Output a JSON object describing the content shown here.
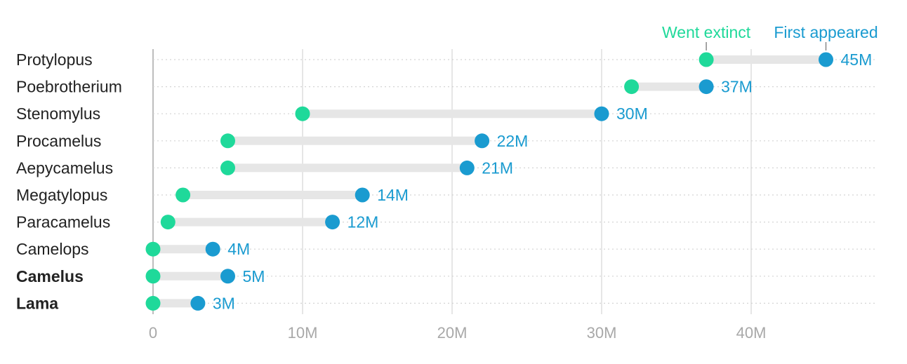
{
  "chart_data": {
    "type": "dumbbell",
    "title": "",
    "xlabel": "",
    "ylabel": "",
    "xlim": [
      0,
      45
    ],
    "x_ticks": [
      {
        "value": 0,
        "label": "0"
      },
      {
        "value": 10,
        "label": "10M"
      },
      {
        "value": 20,
        "label": "20M"
      },
      {
        "value": 30,
        "label": "30M"
      },
      {
        "value": 40,
        "label": "40M"
      }
    ],
    "legend": {
      "went_extinct": "Went extinct",
      "first_appeared": "First appeared",
      "placement": "top-right"
    },
    "colors": {
      "went_extinct": "#1fd99a",
      "first_appeared": "#1a9bd0",
      "connector": "#e6e6e6",
      "gridline": "#dddddd",
      "row_dots": "#d4d4d4"
    },
    "categories": [
      "Protylopus",
      "Poebrotherium",
      "Stenomylus",
      "Procamelus",
      "Aepycamelus",
      "Megatylopus",
      "Paracamelus",
      "Camelops",
      "Camelus",
      "Lama"
    ],
    "bold_categories": [
      "Camelus",
      "Lama"
    ],
    "series": [
      {
        "name": "Went extinct",
        "values": [
          37,
          32,
          10,
          5,
          5,
          2,
          1,
          0,
          0,
          0
        ]
      },
      {
        "name": "First appeared",
        "values": [
          45,
          37,
          30,
          22,
          21,
          14,
          12,
          4,
          5,
          3
        ]
      }
    ],
    "value_labels": [
      "45M",
      "37M",
      "30M",
      "22M",
      "21M",
      "14M",
      "12M",
      "4M",
      "5M",
      "3M"
    ]
  }
}
